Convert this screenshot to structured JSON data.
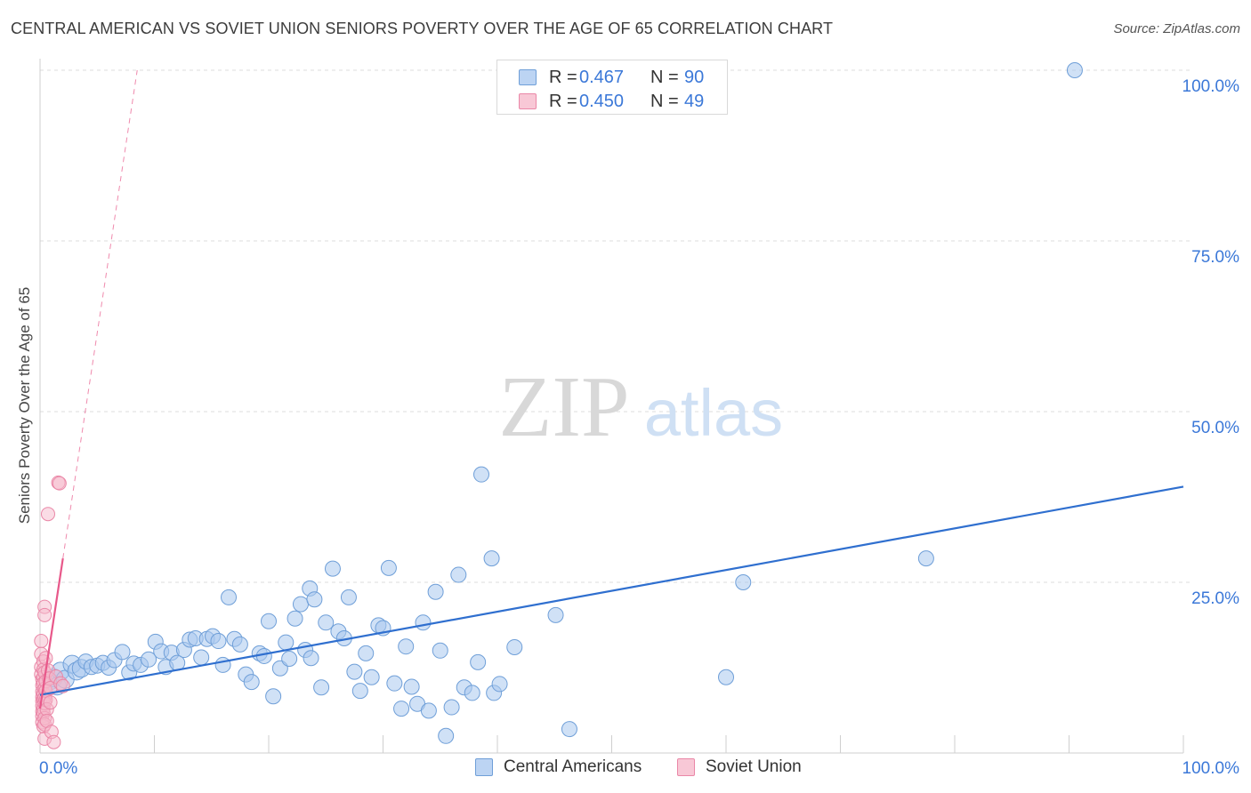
{
  "title": "CENTRAL AMERICAN VS SOVIET UNION SENIORS POVERTY OVER THE AGE OF 65 CORRELATION CHART",
  "source": "Source: ZipAtlas.com",
  "watermark": {
    "zip": "ZIP",
    "atlas": "atlas"
  },
  "legend": {
    "rows": [
      {
        "r_label": "R =",
        "r_value": "0.467",
        "n_label": "N =",
        "n_value": "90"
      },
      {
        "r_label": "R =",
        "r_value": "0.450",
        "n_label": "N =",
        "n_value": "49"
      }
    ]
  },
  "bottom_legend": {
    "series1": "Central Americans",
    "series2": "Soviet Union"
  },
  "colors": {
    "blue_fill": "#a9c8ef",
    "blue_stroke": "#6f9fd8",
    "blue_line": "#2f6fcf",
    "pink_fill": "#f6b9cb",
    "pink_stroke": "#ea87a7",
    "pink_line": "#e8588a",
    "axis_text": "#3b78d8"
  },
  "chart_data": {
    "type": "scatter",
    "title": "CENTRAL AMERICAN VS SOVIET UNION SENIORS POVERTY OVER THE AGE OF 65 CORRELATION CHART",
    "xlabel": "",
    "ylabel": "Seniors Poverty Over the Age of 65",
    "xlim": [
      0,
      100
    ],
    "ylim": [
      0,
      100
    ],
    "x_tick_labels": [
      "0.0%",
      "100.0%"
    ],
    "y_tick_labels": [
      "25.0%",
      "50.0%",
      "75.0%",
      "100.0%"
    ],
    "y_ticks": [
      25,
      50,
      75,
      100
    ],
    "grid": true,
    "series": [
      {
        "name": "Central Americans",
        "r": 0.467,
        "n": 90,
        "trend": {
          "x": [
            0,
            100
          ],
          "y": [
            8.5,
            39
          ]
        },
        "points": [
          [
            0.8,
            10.5
          ],
          [
            1.2,
            11
          ],
          [
            1.5,
            9.8
          ],
          [
            1.8,
            12
          ],
          [
            2.2,
            10.8
          ],
          [
            2.8,
            13
          ],
          [
            3.2,
            12
          ],
          [
            3.6,
            12.4
          ],
          [
            4,
            13.4
          ],
          [
            4.5,
            12.6
          ],
          [
            5,
            12.8
          ],
          [
            5.5,
            13.2
          ],
          [
            6,
            12.5
          ],
          [
            6.5,
            13.6
          ],
          [
            7.2,
            14.8
          ],
          [
            7.8,
            11.8
          ],
          [
            8.2,
            13.1
          ],
          [
            8.8,
            12.9
          ],
          [
            9.5,
            13.7
          ],
          [
            10.1,
            16.3
          ],
          [
            10.6,
            14.9
          ],
          [
            11,
            12.6
          ],
          [
            11.5,
            14.7
          ],
          [
            12,
            13.2
          ],
          [
            12.6,
            15.1
          ],
          [
            13.1,
            16.6
          ],
          [
            13.6,
            16.8
          ],
          [
            14.1,
            14
          ],
          [
            14.6,
            16.7
          ],
          [
            15.1,
            17.1
          ],
          [
            15.6,
            16.4
          ],
          [
            16,
            12.9
          ],
          [
            16.5,
            22.8
          ],
          [
            17,
            16.7
          ],
          [
            17.5,
            15.9
          ],
          [
            18,
            11.5
          ],
          [
            18.5,
            10.4
          ],
          [
            19.2,
            14.6
          ],
          [
            19.6,
            14.2
          ],
          [
            20,
            19.3
          ],
          [
            20.4,
            8.3
          ],
          [
            21,
            12.4
          ],
          [
            21.5,
            16.2
          ],
          [
            21.8,
            13.8
          ],
          [
            22.3,
            19.7
          ],
          [
            22.8,
            21.8
          ],
          [
            23.2,
            15.1
          ],
          [
            23.6,
            24.1
          ],
          [
            23.7,
            13.9
          ],
          [
            24,
            22.5
          ],
          [
            24.6,
            9.6
          ],
          [
            25,
            19.1
          ],
          [
            25.6,
            27
          ],
          [
            26.1,
            17.8
          ],
          [
            26.6,
            16.8
          ],
          [
            27,
            22.8
          ],
          [
            27.5,
            11.9
          ],
          [
            28,
            9.1
          ],
          [
            28.5,
            14.6
          ],
          [
            29,
            11.1
          ],
          [
            29.6,
            18.7
          ],
          [
            30,
            18.3
          ],
          [
            30.5,
            27.1
          ],
          [
            31,
            10.2
          ],
          [
            31.6,
            6.5
          ],
          [
            32,
            15.6
          ],
          [
            32.5,
            9.7
          ],
          [
            33,
            7.2
          ],
          [
            33.5,
            19.1
          ],
          [
            34,
            6.2
          ],
          [
            34.6,
            23.6
          ],
          [
            35,
            15
          ],
          [
            35.5,
            2.5
          ],
          [
            36,
            6.7
          ],
          [
            36.6,
            26.1
          ],
          [
            37.1,
            9.6
          ],
          [
            37.8,
            8.8
          ],
          [
            38.3,
            13.3
          ],
          [
            38.6,
            40.8
          ],
          [
            39.5,
            28.5
          ],
          [
            39.7,
            8.8
          ],
          [
            40.2,
            10.1
          ],
          [
            41.5,
            15.5
          ],
          [
            45.1,
            20.2
          ],
          [
            46.3,
            3.5
          ],
          [
            60,
            11.1
          ],
          [
            61.5,
            25
          ],
          [
            77.5,
            28.5
          ],
          [
            90.5,
            100
          ]
        ]
      },
      {
        "name": "Soviet Union",
        "r": 0.45,
        "n": 49,
        "trend": {
          "x": [
            0,
            2
          ],
          "y": [
            6.5,
            28.5
          ]
        },
        "trend_ext": {
          "x": [
            2,
            8.5
          ],
          "y": [
            28.5,
            100
          ]
        },
        "points": [
          [
            0.1,
            16.4
          ],
          [
            0.1,
            14.5
          ],
          [
            0.1,
            12.6
          ],
          [
            0.1,
            11.5
          ],
          [
            0.2,
            10.8
          ],
          [
            0.2,
            9.9
          ],
          [
            0.2,
            9
          ],
          [
            0.2,
            8.2
          ],
          [
            0.2,
            7.6
          ],
          [
            0.2,
            6.9
          ],
          [
            0.2,
            6.1
          ],
          [
            0.2,
            5.4
          ],
          [
            0.2,
            4.5
          ],
          [
            0.3,
            13.4
          ],
          [
            0.3,
            12.2
          ],
          [
            0.3,
            11.1
          ],
          [
            0.3,
            10.2
          ],
          [
            0.3,
            8.7
          ],
          [
            0.3,
            7.9
          ],
          [
            0.3,
            6.5
          ],
          [
            0.3,
            5.9
          ],
          [
            0.3,
            3.9
          ],
          [
            0.4,
            21.4
          ],
          [
            0.4,
            20.2
          ],
          [
            0.4,
            11.8
          ],
          [
            0.4,
            9.4
          ],
          [
            0.4,
            8.1
          ],
          [
            0.4,
            7.3
          ],
          [
            0.4,
            5.1
          ],
          [
            0.4,
            4.2
          ],
          [
            0.4,
            2.1
          ],
          [
            0.5,
            13.9
          ],
          [
            0.5,
            10.5
          ],
          [
            0.5,
            9.1
          ],
          [
            0.5,
            7.8
          ],
          [
            0.6,
            6.4
          ],
          [
            0.6,
            4.7
          ],
          [
            0.7,
            35
          ],
          [
            0.7,
            12.1
          ],
          [
            0.8,
            10.9
          ],
          [
            0.9,
            9.5
          ],
          [
            0.9,
            7.4
          ],
          [
            1,
            3.1
          ],
          [
            1.2,
            1.6
          ],
          [
            1.4,
            11.2
          ],
          [
            1.6,
            39.6
          ],
          [
            1.7,
            39.5
          ],
          [
            1.8,
            10.2
          ],
          [
            2,
            9.8
          ]
        ]
      }
    ]
  }
}
